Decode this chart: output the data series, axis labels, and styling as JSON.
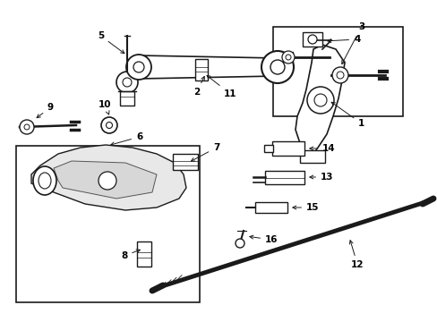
{
  "bg_color": "#ffffff",
  "line_color": "#1a1a1a",
  "label_color": "#000000",
  "fig_width": 4.89,
  "fig_height": 3.6,
  "dpi": 100
}
